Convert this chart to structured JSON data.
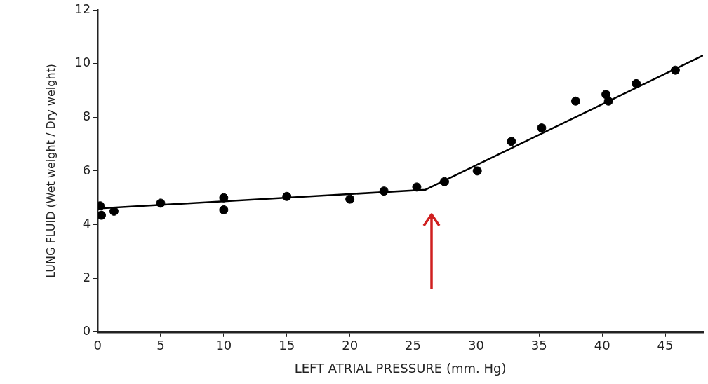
{
  "chart_data": {
    "type": "scatter",
    "xlabel": "LEFT ATRIAL PRESSURE (mm. Hg)",
    "ylabel": "LUNG FLUID (Wet weight / Dry weight)",
    "series": [
      {
        "marker": "circle",
        "color": "#000000",
        "x": [
          0.2,
          0.3,
          1.3,
          5,
          10,
          10,
          15,
          20,
          22.7,
          25.3,
          27.5,
          30.1,
          32.8,
          35.2,
          37.9,
          40.3,
          40.5,
          42.7,
          45.8
        ],
        "values": [
          4.7,
          4.35,
          4.5,
          4.8,
          5.0,
          4.55,
          5.05,
          4.95,
          5.25,
          5.4,
          5.6,
          6.0,
          7.1,
          7.6,
          8.6,
          8.85,
          8.6,
          9.25,
          9.75
        ]
      },
      {
        "type": "line",
        "color": "#000000",
        "x": [
          0,
          26,
          48
        ],
        "values": [
          4.6,
          5.3,
          10.3
        ]
      }
    ],
    "xlim": [
      0,
      48
    ],
    "xticks": [
      0,
      5,
      10,
      15,
      20,
      25,
      30,
      35,
      40,
      45
    ],
    "ylim": [
      0,
      12
    ],
    "yticks": [
      0,
      2,
      4,
      6,
      8,
      10,
      12
    ],
    "grid": false,
    "legend": false
  }
}
